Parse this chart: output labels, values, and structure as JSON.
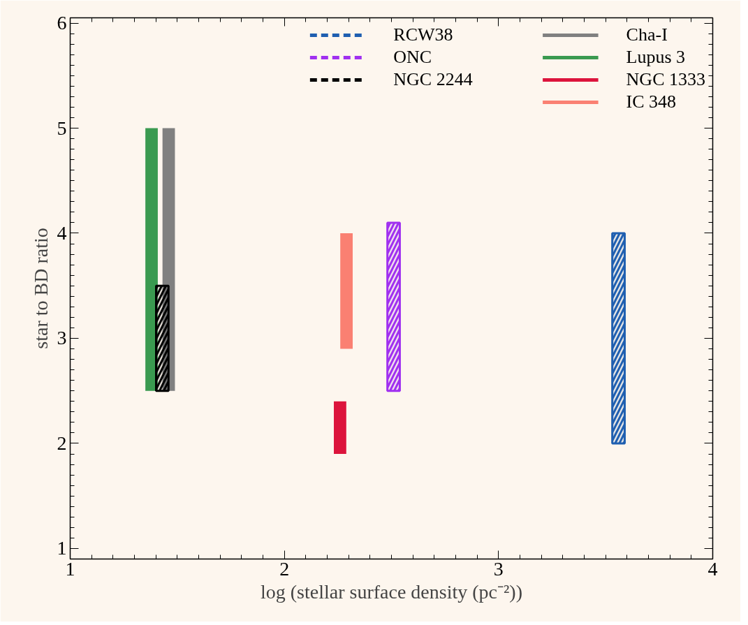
{
  "chart_data": {
    "type": "bar",
    "xlabel": "log (stellar surface density (pc⁻²))",
    "ylabel": "star to BD ratio",
    "xlim": [
      1,
      4
    ],
    "ylim": [
      0.9,
      6.05
    ],
    "xticks": [
      1,
      2,
      3,
      4
    ],
    "yticks": [
      1,
      2,
      3,
      4,
      5,
      6
    ],
    "grid": false,
    "legend": "top right",
    "series": [
      {
        "name": "RCW38",
        "color": "#1f5fb0",
        "x": [
          3.56
        ],
        "base": [
          2.0
        ],
        "values": [
          2.0
        ],
        "line_style": "dashed"
      },
      {
        "name": "ONC",
        "color": "#a030f0",
        "x": [
          2.51
        ],
        "base": [
          2.5
        ],
        "values": [
          1.6
        ],
        "line_style": "dashed"
      },
      {
        "name": "NGC 2244",
        "color": "#000000",
        "x": [
          1.43
        ],
        "base": [
          2.5
        ],
        "values": [
          1.0
        ],
        "line_style": "dashed"
      },
      {
        "name": "Cha-I",
        "color": "#808080",
        "x": [
          1.46
        ],
        "base": [
          2.5
        ],
        "values": [
          2.5
        ],
        "line_style": "solid"
      },
      {
        "name": "Lupus 3",
        "color": "#3a9a50",
        "x": [
          1.38
        ],
        "base": [
          2.5
        ],
        "values": [
          2.5
        ],
        "line_style": "solid"
      },
      {
        "name": "NGC 1333",
        "color": "#dc143c",
        "x": [
          2.26
        ],
        "base": [
          1.9
        ],
        "values": [
          0.5
        ],
        "line_style": "solid"
      },
      {
        "name": "IC 348",
        "color": "#fa8072",
        "x": [
          2.29
        ],
        "base": [
          2.9
        ],
        "values": [
          1.1
        ],
        "line_style": "solid"
      }
    ]
  }
}
